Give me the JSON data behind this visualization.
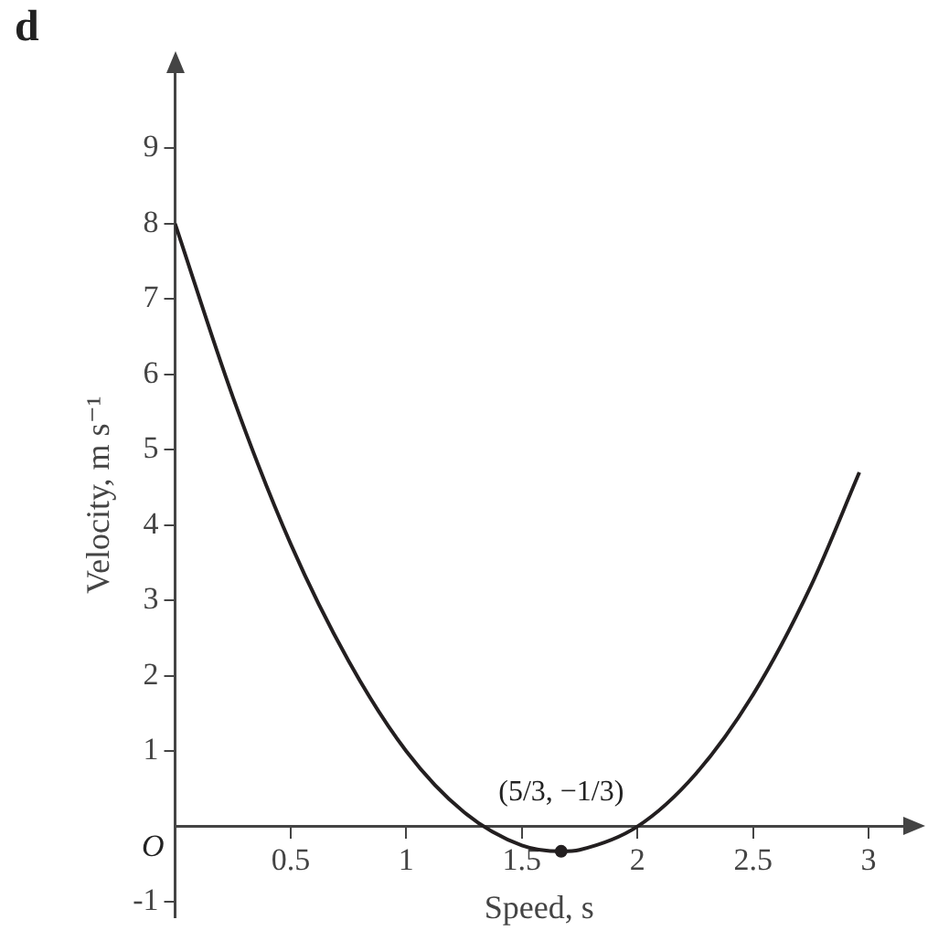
{
  "chart_data": {
    "type": "line",
    "xlabel": "Speed, s",
    "ylabel": "Velocity, m s⁻¹",
    "annotations": [
      "d",
      "O",
      {
        "text": "(5/3, −1/3)",
        "x": 1.67,
        "y": -0.33
      }
    ],
    "xlim": [
      0,
      3.15
    ],
    "ylim": [
      -1.2,
      10
    ],
    "xticks": [
      0.5,
      1,
      1.5,
      2,
      2.5,
      3
    ],
    "yticks": [
      -1,
      1,
      2,
      3,
      4,
      5,
      6,
      7,
      8,
      9
    ],
    "grid": false,
    "legend": false,
    "marker": "none",
    "line_style": "solid",
    "series": [
      {
        "color": "#231f20",
        "x": [
          0,
          0.25,
          0.5,
          0.75,
          1,
          1.25,
          1.5,
          1.67,
          1.75,
          2,
          2.25,
          2.5,
          2.75,
          2.96
        ],
        "values": [
          8,
          5.7,
          3.75,
          2.2,
          1,
          0.19,
          -0.25,
          -0.33,
          -0.31,
          0,
          0.69,
          1.75,
          3.19,
          4.7
        ]
      },
      {
        "type": "scatter",
        "marker": "circle",
        "color": "#231f20",
        "x": [
          1.67
        ],
        "values": [
          -0.33
        ]
      }
    ]
  }
}
